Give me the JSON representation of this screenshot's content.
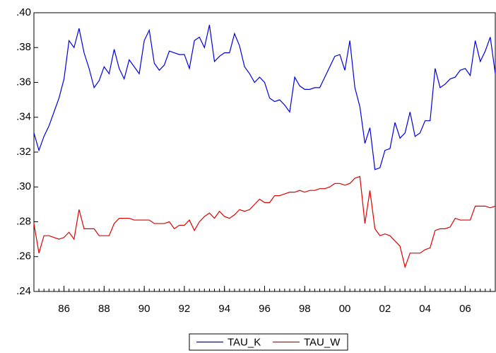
{
  "chart_data": {
    "type": "line",
    "x": [
      1985,
      1985.25,
      1985.5,
      1985.75,
      1986,
      1986.25,
      1986.5,
      1986.75,
      1987,
      1987.25,
      1987.5,
      1987.75,
      1988,
      1988.25,
      1988.5,
      1988.75,
      1989,
      1989.25,
      1989.5,
      1989.75,
      1990,
      1990.25,
      1990.5,
      1990.75,
      1991,
      1991.25,
      1991.5,
      1991.75,
      1992,
      1992.25,
      1992.5,
      1992.75,
      1993,
      1993.25,
      1993.5,
      1993.75,
      1994,
      1994.25,
      1994.5,
      1994.75,
      1995,
      1995.25,
      1995.5,
      1995.75,
      1996,
      1996.25,
      1996.5,
      1996.75,
      1997,
      1997.25,
      1997.5,
      1997.75,
      1998,
      1998.25,
      1998.5,
      1998.75,
      1999,
      1999.25,
      1999.5,
      1999.75,
      2000,
      2000.25,
      2000.5,
      2000.75,
      2001,
      2001.25,
      2001.5,
      2001.75,
      2002,
      2002.25,
      2002.5,
      2002.75,
      2003,
      2003.25,
      2003.5,
      2003.75,
      2004,
      2004.25,
      2004.5,
      2004.75,
      2005,
      2005.25,
      2005.5,
      2005.75,
      2006,
      2006.25,
      2006.5,
      2006.75,
      2007,
      2007.25,
      2007.5,
      2007.75,
      2008
    ],
    "series": [
      {
        "name": "TAU_K",
        "color": "#0000e0",
        "values": [
          0.331,
          0.321,
          0.329,
          0.335,
          0.343,
          0.351,
          0.362,
          0.384,
          0.38,
          0.391,
          0.377,
          0.368,
          0.357,
          0.361,
          0.369,
          0.365,
          0.379,
          0.368,
          0.362,
          0.373,
          0.369,
          0.365,
          0.384,
          0.39,
          0.371,
          0.367,
          0.37,
          0.378,
          0.377,
          0.376,
          0.376,
          0.368,
          0.384,
          0.386,
          0.38,
          0.393,
          0.372,
          0.375,
          0.377,
          0.377,
          0.388,
          0.381,
          0.369,
          0.365,
          0.36,
          0.363,
          0.36,
          0.351,
          0.349,
          0.35,
          0.347,
          0.343,
          0.363,
          0.358,
          0.356,
          0.356,
          0.357,
          0.357,
          0.363,
          0.369,
          0.375,
          0.376,
          0.367,
          0.384,
          0.357,
          0.346,
          0.325,
          0.334,
          0.31,
          0.311,
          0.321,
          0.322,
          0.337,
          0.328,
          0.331,
          0.343,
          0.329,
          0.331,
          0.338,
          0.338,
          0.368,
          0.357,
          0.359,
          0.362,
          0.363,
          0.367,
          0.368,
          0.364,
          0.384,
          0.372,
          0.378,
          0.386,
          0.365
        ]
      },
      {
        "name": "TAU_W",
        "color": "#e00000",
        "values": [
          0.279,
          0.262,
          0.272,
          0.272,
          0.271,
          0.27,
          0.271,
          0.274,
          0.27,
          0.287,
          0.276,
          0.276,
          0.276,
          0.272,
          0.272,
          0.272,
          0.279,
          0.282,
          0.282,
          0.282,
          0.281,
          0.281,
          0.281,
          0.281,
          0.279,
          0.279,
          0.279,
          0.28,
          0.276,
          0.278,
          0.278,
          0.281,
          0.275,
          0.28,
          0.283,
          0.285,
          0.282,
          0.286,
          0.283,
          0.282,
          0.284,
          0.287,
          0.286,
          0.287,
          0.29,
          0.293,
          0.291,
          0.291,
          0.295,
          0.295,
          0.296,
          0.297,
          0.297,
          0.298,
          0.297,
          0.298,
          0.298,
          0.299,
          0.299,
          0.3,
          0.302,
          0.302,
          0.301,
          0.302,
          0.305,
          0.306,
          0.279,
          0.298,
          0.276,
          0.272,
          0.273,
          0.272,
          0.269,
          0.266,
          0.254,
          0.262,
          0.262,
          0.262,
          0.264,
          0.265,
          0.275,
          0.276,
          0.276,
          0.277,
          0.282,
          0.281,
          0.281,
          0.281,
          0.289,
          0.289,
          0.289,
          0.288,
          0.289
        ]
      }
    ],
    "xlim": [
      1985,
      2008
    ],
    "xticks": [
      {
        "value": 1986.5,
        "label": "86"
      },
      {
        "value": 1988.5,
        "label": "88"
      },
      {
        "value": 1990.5,
        "label": "90"
      },
      {
        "value": 1992.5,
        "label": "92"
      },
      {
        "value": 1994.5,
        "label": "94"
      },
      {
        "value": 1996.5,
        "label": "96"
      },
      {
        "value": 1998.5,
        "label": "98"
      },
      {
        "value": 2000.5,
        "label": "00"
      },
      {
        "value": 2002.5,
        "label": "02"
      },
      {
        "value": 2004.5,
        "label": "04"
      },
      {
        "value": 2006.5,
        "label": "06"
      }
    ],
    "ylim": [
      0.24,
      0.4
    ],
    "yticks": [
      {
        "value": 0.24,
        "label": ".24"
      },
      {
        "value": 0.26,
        "label": ".26"
      },
      {
        "value": 0.28,
        "label": ".28"
      },
      {
        "value": 0.3,
        "label": ".30"
      },
      {
        "value": 0.32,
        "label": ".32"
      },
      {
        "value": 0.34,
        "label": ".34"
      },
      {
        "value": 0.36,
        "label": ".36"
      },
      {
        "value": 0.38,
        "label": ".38"
      },
      {
        "value": 0.4,
        "label": ".40"
      }
    ],
    "legend": "bottom"
  }
}
